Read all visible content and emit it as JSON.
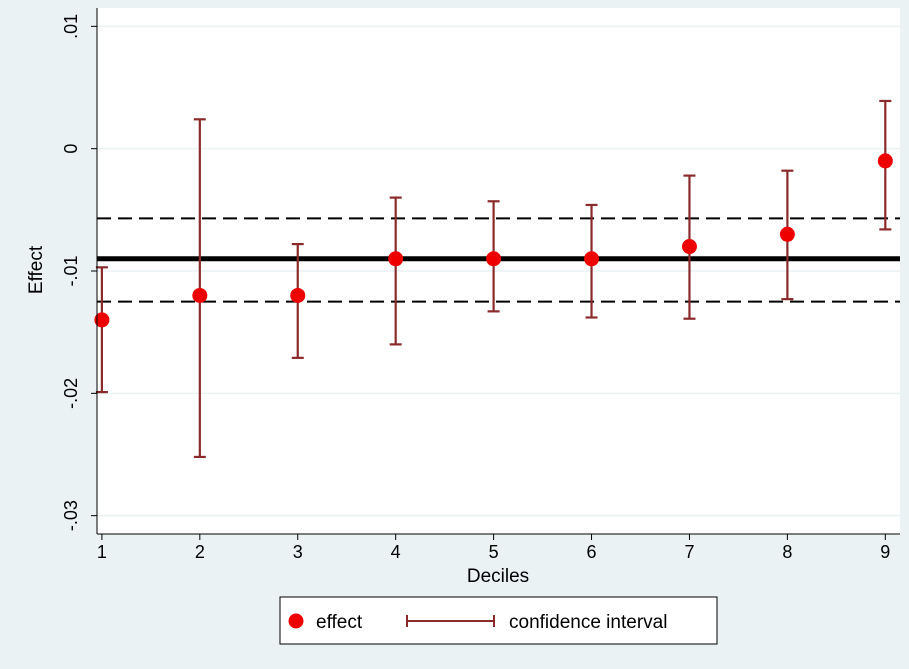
{
  "chart_data": {
    "type": "scatter",
    "xlabel": "Deciles",
    "ylabel": "Effect",
    "x": [
      1,
      2,
      3,
      4,
      5,
      6,
      7,
      8,
      9
    ],
    "xticks": [
      "1",
      "2",
      "3",
      "4",
      "5",
      "6",
      "7",
      "8",
      "9"
    ],
    "yticks": [
      -0.03,
      -0.02,
      -0.01,
      0,
      0.01
    ],
    "ytick_labels": [
      "-.03",
      "-.02",
      "-.01",
      "0",
      ".01"
    ],
    "xlim": [
      0.95,
      9.15
    ],
    "ylim": [
      -0.0315,
      0.0115
    ],
    "grid": "horizontal",
    "series": [
      {
        "name": "effect",
        "marker": "filled-circle",
        "color": "#ee0000",
        "values": [
          -0.014,
          -0.012,
          -0.012,
          -0.009,
          -0.009,
          -0.009,
          -0.008,
          -0.007,
          -0.001
        ]
      },
      {
        "name": "confidence interval",
        "type": "capped-range",
        "color": "#8b2a2a",
        "lower": [
          -0.0199,
          -0.0252,
          -0.0171,
          -0.016,
          -0.0133,
          -0.0138,
          -0.0139,
          -0.0123,
          -0.0066
        ],
        "upper": [
          -0.0097,
          0.0024,
          -0.0078,
          -0.004,
          -0.0043,
          -0.0046,
          -0.0022,
          -0.0018,
          0.0039
        ]
      }
    ],
    "reference_lines": {
      "overall_effect": {
        "y": -0.009,
        "style": "solid-thick"
      },
      "overall_ci_upper": {
        "y": -0.0057,
        "style": "dashed"
      },
      "overall_ci_lower": {
        "y": -0.0125,
        "style": "dashed"
      }
    },
    "legend": {
      "position": "bottom-center",
      "entries": [
        "effect",
        "confidence interval"
      ]
    },
    "colors": {
      "background": "#eaf2f3",
      "plot_area": "#ffffff",
      "grid": "#eaf2f3",
      "reference": "#000000"
    }
  }
}
